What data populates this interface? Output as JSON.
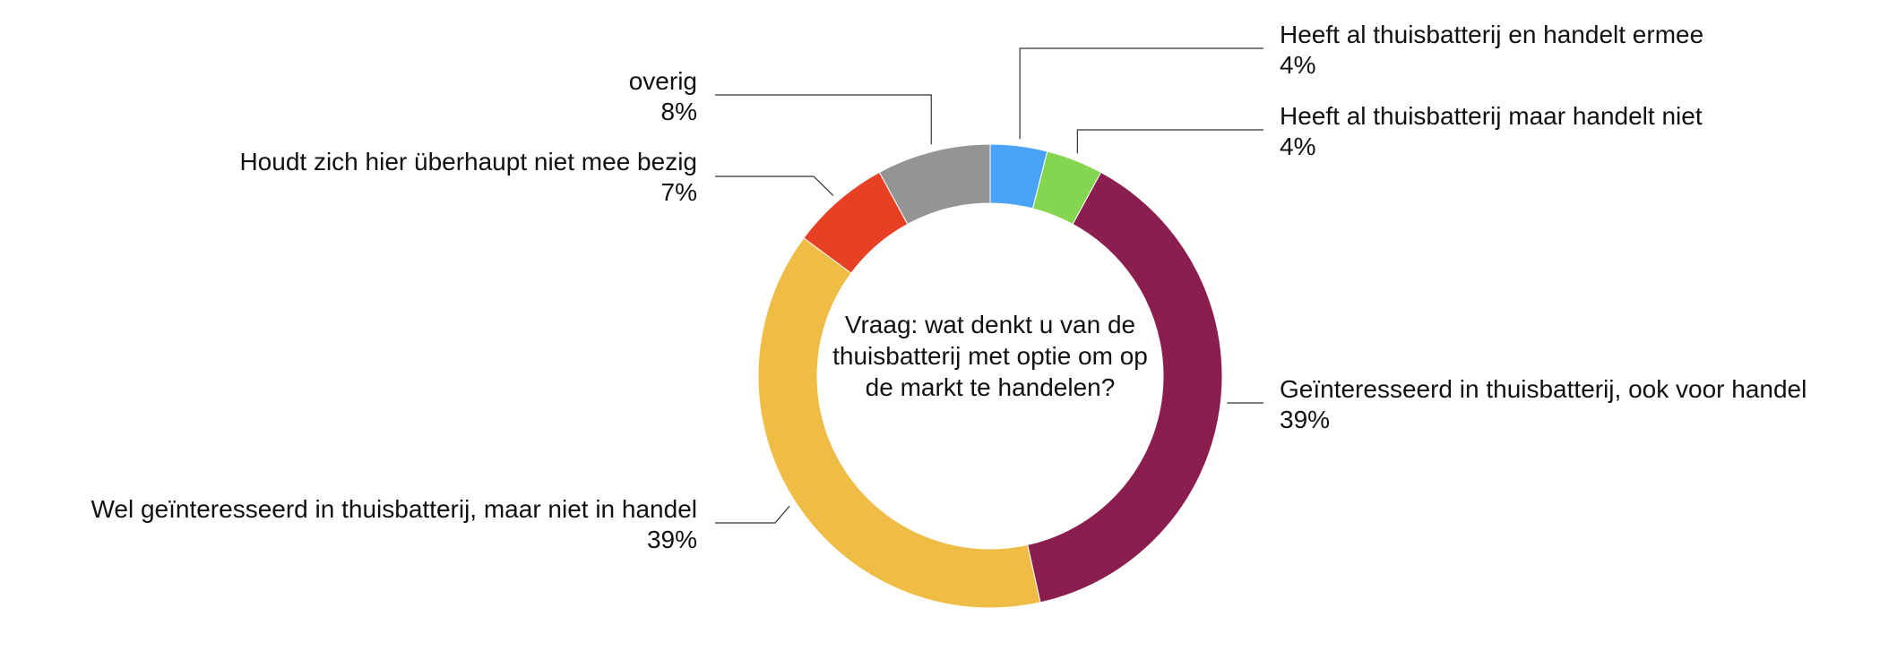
{
  "chart_data": {
    "type": "pie",
    "variant": "donut",
    "center_text": "Vraag: wat denkt u van de thuisbatterij met optie om op de markt te handelen?",
    "series": [
      {
        "label": "Heeft al thuisbatterij en handelt ermee",
        "value": 4,
        "display": "4%",
        "color": "#4aa3f7"
      },
      {
        "label": "Heeft al thuisbatterij maar handelt niet",
        "value": 4,
        "display": "4%",
        "color": "#84d651"
      },
      {
        "label": "Geïnteresseerd in thuisbatterij, ook voor handel",
        "value": 39,
        "display": "39%",
        "color": "#8a1f4f"
      },
      {
        "label": "Wel geïnteresseerd in thuisbatterij, maar niet in handel",
        "value": 39,
        "display": "39%",
        "color": "#efbd45"
      },
      {
        "label": "Houdt zich hier überhaupt niet mee bezig",
        "value": 7,
        "display": "7%",
        "color": "#e84024"
      },
      {
        "label": "overig",
        "value": 8,
        "display": "8%",
        "color": "#949494"
      }
    ]
  }
}
